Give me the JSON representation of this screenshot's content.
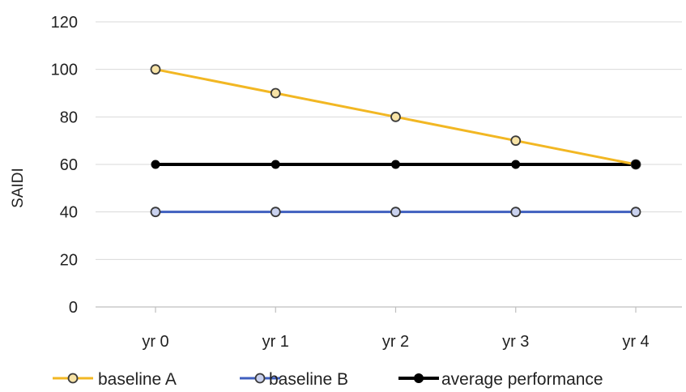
{
  "chart_data": {
    "type": "line",
    "ylabel": "SAIDI",
    "xlabel": "",
    "categories": [
      "yr 0",
      "yr 1",
      "yr 2",
      "yr 3",
      "yr 4"
    ],
    "ylim": [
      0,
      120
    ],
    "yticks": [
      0,
      20,
      40,
      60,
      80,
      100,
      120
    ],
    "grid": true,
    "legend_position": "bottom",
    "series": [
      {
        "name": "baseline A",
        "values": [
          100,
          90,
          80,
          70,
          60
        ],
        "color": "#F2B723",
        "marker": "hollow-circle"
      },
      {
        "name": "baseline B",
        "values": [
          40,
          40,
          40,
          40,
          40
        ],
        "color": "#3F5FBF",
        "marker": "hollow-circle"
      },
      {
        "name": "average performance",
        "values": [
          60,
          60,
          60,
          60,
          60
        ],
        "color": "#000000",
        "marker": "filled-circle"
      }
    ]
  }
}
